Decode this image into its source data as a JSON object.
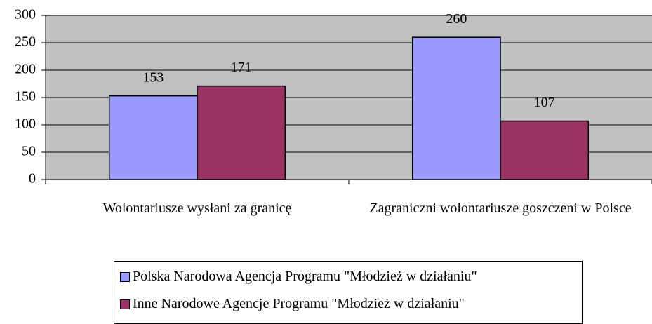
{
  "chart_data": {
    "type": "bar",
    "categories": [
      "Wolontariusze wysłani za granicę",
      "Zagraniczni wolontariusze goszczeni w Polsce"
    ],
    "series": [
      {
        "name": "Polska Narodowa Agencja Programu \"Młodzież w działaniu\"",
        "color": "#9999ff",
        "values": [
          153,
          260
        ]
      },
      {
        "name": "Inne Narodowe Agencje Programu \"Młodzież w działaniu\"",
        "color": "#993366",
        "values": [
          171,
          107
        ]
      }
    ],
    "ylim": [
      0,
      300
    ],
    "yticks": [
      0,
      50,
      100,
      150,
      200,
      250,
      300
    ],
    "grid": true,
    "legend": "bottom"
  }
}
